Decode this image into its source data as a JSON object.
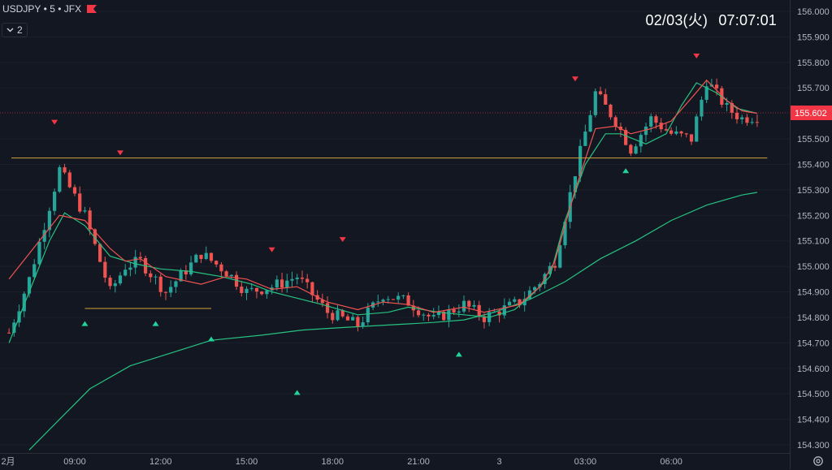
{
  "header": {
    "symbol": "USDJPY",
    "interval": "5",
    "exchange": "JFX",
    "flag_color": "#f23645",
    "indicator_count": "2",
    "collapse_icon": "chevron-down-icon"
  },
  "clock": {
    "date": "02/03(火)",
    "time": "07:07:01"
  },
  "price_axis": {
    "labels": [
      "156.000",
      "155.900",
      "155.800",
      "155.700",
      "155.602",
      "155.500",
      "155.400",
      "155.300",
      "155.200",
      "155.100",
      "155.000",
      "154.900",
      "154.800",
      "154.700",
      "154.600",
      "154.500",
      "154.400",
      "154.300"
    ],
    "current_price": "155.602",
    "current_price_color": "#f23645"
  },
  "time_axis": {
    "labels": [
      "2月",
      "09:00",
      "12:00",
      "15:00",
      "18:00",
      "21:00",
      "3",
      "03:00",
      "06:00"
    ]
  },
  "settings_icon": "gear-icon",
  "chart_data": {
    "type": "candlestick",
    "title": "",
    "xlabel": "",
    "ylabel": "",
    "ylim": [
      154.28,
      156.06
    ],
    "x_ticks": [
      "2月",
      "09:00",
      "12:00",
      "15:00",
      "18:00",
      "21:00",
      "3",
      "03:00",
      "06:00"
    ],
    "colors": {
      "up": "#26a69a",
      "down": "#ef5350",
      "background": "#131722",
      "short_ma": "#ef5350",
      "mid_ma": "#26c281",
      "long_ma": "#26c281",
      "levels": "#d4a03a"
    },
    "close_path": [
      [
        0,
        154.74
      ],
      [
        4,
        154.95
      ],
      [
        10,
        155.38
      ],
      [
        15,
        155.2
      ],
      [
        20,
        154.9
      ],
      [
        23,
        155.0
      ],
      [
        26,
        155.02
      ],
      [
        31,
        154.9
      ],
      [
        38,
        155.05
      ],
      [
        43,
        154.98
      ],
      [
        47,
        154.9
      ],
      [
        52,
        154.92
      ],
      [
        57,
        154.96
      ],
      [
        63,
        154.82
      ],
      [
        69,
        154.77
      ],
      [
        74,
        154.89
      ],
      [
        79,
        154.86
      ],
      [
        84,
        154.79
      ],
      [
        90,
        154.85
      ],
      [
        94,
        154.8
      ],
      [
        101,
        154.86
      ],
      [
        105,
        154.94
      ],
      [
        108,
        155.02
      ],
      [
        112,
        155.37
      ],
      [
        116,
        155.68
      ],
      [
        120,
        155.57
      ],
      [
        123,
        155.46
      ],
      [
        127,
        155.58
      ],
      [
        131,
        155.52
      ],
      [
        135,
        155.5
      ],
      [
        138,
        155.73
      ],
      [
        142,
        155.62
      ],
      [
        145,
        155.58
      ],
      [
        148,
        155.59
      ]
    ],
    "short_ma_path": [
      [
        0,
        154.95
      ],
      [
        4,
        155.05
      ],
      [
        10,
        155.2
      ],
      [
        15,
        155.18
      ],
      [
        20,
        155.07
      ],
      [
        23,
        155.02
      ],
      [
        26,
        155.03
      ],
      [
        31,
        154.96
      ],
      [
        38,
        154.93
      ],
      [
        43,
        154.96
      ],
      [
        47,
        154.95
      ],
      [
        52,
        154.91
      ],
      [
        57,
        154.92
      ],
      [
        63,
        154.86
      ],
      [
        69,
        154.83
      ],
      [
        74,
        154.86
      ],
      [
        79,
        154.85
      ],
      [
        84,
        154.82
      ],
      [
        90,
        154.84
      ],
      [
        94,
        154.82
      ],
      [
        101,
        154.85
      ],
      [
        105,
        154.92
      ],
      [
        108,
        155.02
      ],
      [
        112,
        155.3
      ],
      [
        116,
        155.54
      ],
      [
        120,
        155.55
      ],
      [
        123,
        155.52
      ],
      [
        127,
        155.54
      ],
      [
        131,
        155.57
      ],
      [
        135,
        155.66
      ],
      [
        138,
        155.73
      ],
      [
        142,
        155.65
      ],
      [
        145,
        155.61
      ],
      [
        148,
        155.6
      ]
    ],
    "mid_ma_path": [
      [
        0,
        154.7
      ],
      [
        4,
        154.9
      ],
      [
        8,
        155.1
      ],
      [
        11,
        155.21
      ],
      [
        15,
        155.16
      ],
      [
        20,
        155.04
      ],
      [
        25,
        155.01
      ],
      [
        30,
        154.99
      ],
      [
        36,
        154.98
      ],
      [
        42,
        154.96
      ],
      [
        48,
        154.93
      ],
      [
        52,
        154.9
      ],
      [
        56,
        154.88
      ],
      [
        62,
        154.85
      ],
      [
        69,
        154.81
      ],
      [
        75,
        154.82
      ],
      [
        79,
        154.84
      ],
      [
        85,
        154.82
      ],
      [
        90,
        154.81
      ],
      [
        95,
        154.8
      ],
      [
        100,
        154.83
      ],
      [
        103,
        154.88
      ],
      [
        107,
        154.96
      ],
      [
        110,
        155.18
      ],
      [
        114,
        155.4
      ],
      [
        118,
        155.52
      ],
      [
        121,
        155.52
      ],
      [
        126,
        155.48
      ],
      [
        130,
        155.52
      ],
      [
        133,
        155.63
      ],
      [
        136,
        155.72
      ],
      [
        140,
        155.68
      ],
      [
        144,
        155.62
      ],
      [
        148,
        155.6
      ]
    ],
    "long_ma_path": [
      [
        4,
        154.28
      ],
      [
        10,
        154.4
      ],
      [
        16,
        154.52
      ],
      [
        24,
        154.61
      ],
      [
        32,
        154.66
      ],
      [
        40,
        154.71
      ],
      [
        50,
        154.73
      ],
      [
        58,
        154.75
      ],
      [
        66,
        154.76
      ],
      [
        75,
        154.77
      ],
      [
        84,
        154.78
      ],
      [
        90,
        154.79
      ],
      [
        96,
        154.82
      ],
      [
        103,
        154.87
      ],
      [
        110,
        154.94
      ],
      [
        117,
        155.03
      ],
      [
        124,
        155.1
      ],
      [
        131,
        155.18
      ],
      [
        138,
        155.24
      ],
      [
        145,
        155.28
      ],
      [
        148,
        155.29
      ]
    ],
    "horizontal_levels": [
      {
        "x0": 0,
        "x1": 150,
        "y": 155.425
      },
      {
        "x0": 15,
        "x1": 40,
        "y": 154.835
      }
    ],
    "pivot_highs": [
      {
        "x": 9,
        "price": 155.53
      },
      {
        "x": 22,
        "price": 155.41
      },
      {
        "x": 52,
        "price": 155.03
      },
      {
        "x": 66,
        "price": 155.07
      },
      {
        "x": 112,
        "price": 155.7
      },
      {
        "x": 136,
        "price": 155.79
      }
    ],
    "pivot_lows": [
      {
        "x": 15,
        "price": 154.82
      },
      {
        "x": 29,
        "price": 154.82
      },
      {
        "x": 40,
        "price": 154.76
      },
      {
        "x": 57,
        "price": 154.55
      },
      {
        "x": 89,
        "price": 154.7
      },
      {
        "x": 122,
        "price": 155.42
      }
    ]
  }
}
